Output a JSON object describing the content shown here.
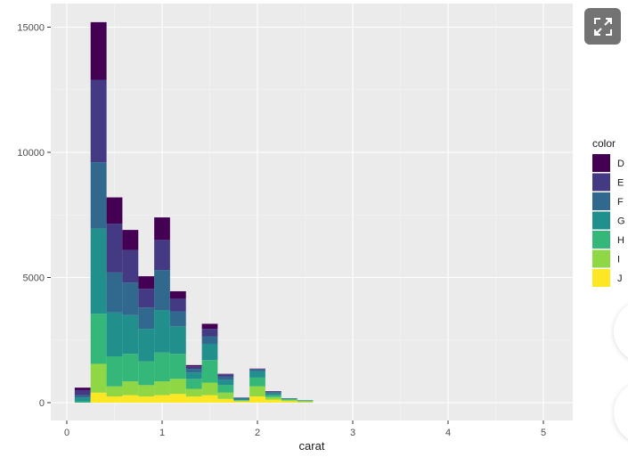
{
  "chart_data": {
    "type": "bar",
    "stacked": true,
    "title": "",
    "xlabel": "carat",
    "ylabel": "",
    "xlim": [
      0,
      5.2
    ],
    "ylim": [
      -700,
      15700
    ],
    "x_ticks": [
      0,
      1,
      2,
      3,
      4,
      5
    ],
    "y_ticks": [
      0,
      5000,
      10000,
      15000
    ],
    "grid": true,
    "legend_position": "right",
    "legend_title": "color",
    "bin_edges": [
      0.083,
      0.25,
      0.417,
      0.583,
      0.75,
      0.917,
      1.083,
      1.25,
      1.417,
      1.583,
      1.75,
      1.917,
      2.083,
      2.25,
      2.417,
      2.583
    ],
    "categories": [
      "0.17",
      "0.33",
      "0.50",
      "0.67",
      "0.83",
      "1.00",
      "1.17",
      "1.33",
      "1.50",
      "1.67",
      "1.83",
      "2.00",
      "2.17",
      "2.33",
      "2.50"
    ],
    "series": [
      {
        "name": "J",
        "color": "#FDE725",
        "values": [
          0,
          400,
          250,
          300,
          250,
          300,
          350,
          250,
          300,
          150,
          50,
          250,
          120,
          60,
          20
        ]
      },
      {
        "name": "I",
        "color": "#8FD744",
        "values": [
          0,
          1150,
          400,
          550,
          450,
          550,
          600,
          300,
          500,
          250,
          30,
          400,
          100,
          50,
          40
        ]
      },
      {
        "name": "H",
        "color": "#35B779",
        "values": [
          50,
          2000,
          1200,
          1100,
          950,
          1150,
          1000,
          400,
          900,
          300,
          20,
          350,
          80,
          30,
          20
        ]
      },
      {
        "name": "G",
        "color": "#21908C",
        "values": [
          150,
          3400,
          1750,
          1550,
          1300,
          1700,
          1100,
          250,
          650,
          200,
          60,
          250,
          70,
          20,
          10
        ]
      },
      {
        "name": "F",
        "color": "#31688E",
        "values": [
          100,
          2650,
          1600,
          1300,
          850,
          1600,
          600,
          150,
          300,
          150,
          30,
          80,
          50,
          10,
          5
        ]
      },
      {
        "name": "E",
        "color": "#443A83",
        "values": [
          200,
          3300,
          1950,
          1300,
          750,
          1200,
          500,
          100,
          300,
          80,
          10,
          20,
          30,
          5,
          3
        ]
      },
      {
        "name": "D",
        "color": "#440154",
        "values": [
          100,
          2300,
          1050,
          800,
          500,
          900,
          300,
          50,
          200,
          20,
          5,
          10,
          10,
          2,
          2
        ]
      }
    ]
  },
  "axes": {
    "x_title": "carat",
    "x_tick_labels": [
      "0",
      "1",
      "2",
      "3",
      "4",
      "5"
    ],
    "y_tick_labels": [
      "0",
      "5000",
      "10000",
      "15000"
    ]
  },
  "legend": {
    "title": "color",
    "items": [
      {
        "label": "D",
        "color": "#440154"
      },
      {
        "label": "E",
        "color": "#443A83"
      },
      {
        "label": "F",
        "color": "#31688E"
      },
      {
        "label": "G",
        "color": "#21908C"
      },
      {
        "label": "H",
        "color": "#35B779"
      },
      {
        "label": "I",
        "color": "#8FD744"
      },
      {
        "label": "J",
        "color": "#FDE725"
      }
    ]
  },
  "ui": {
    "expand_icon": "expand-arrows-icon"
  }
}
